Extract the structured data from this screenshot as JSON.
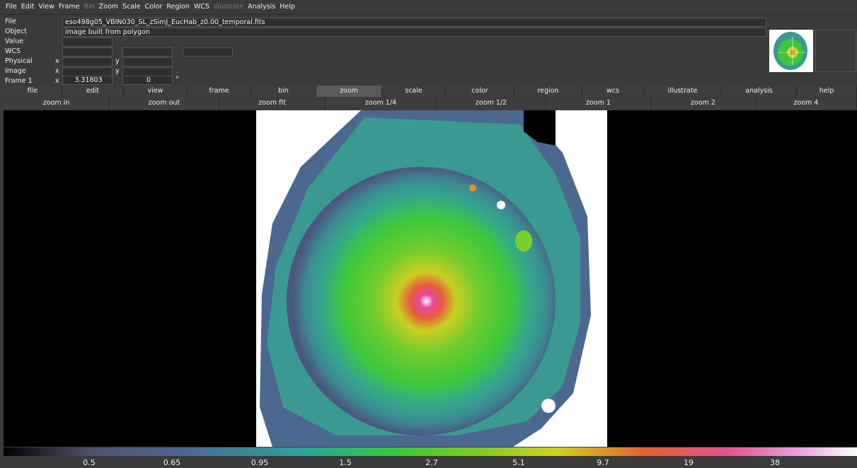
{
  "menu": [
    "File",
    "Edit",
    "View",
    "Frame",
    "Bin",
    "Zoom",
    "Scale",
    "Color",
    "Region",
    "WCS",
    "Illustrate",
    "Analysis",
    "Help"
  ],
  "menu_disabled": [
    "Bin",
    "Illustrate"
  ],
  "info": {
    "file_label": "File",
    "file_value": "eso498g05_VBIN030_SL_zSimJ_EucHab_z0.00_temporal.fits",
    "object_label": "Object",
    "object_value": "image built from polygon",
    "value_label": "Value",
    "wcs_label": "WCS",
    "physical_label": "Physical",
    "image_label": "Image",
    "frame_label": "Frame 1",
    "x": "x",
    "y": "y",
    "frame_x": "3.31803",
    "frame_angle": "0",
    "degree": "°"
  },
  "buttons": [
    "file",
    "edit",
    "view",
    "frame",
    "bin",
    "zoom",
    "scale",
    "color",
    "region",
    "wcs",
    "illustrate",
    "analysis",
    "help"
  ],
  "active_button": "zoom",
  "zoom_buttons": [
    "zoom in",
    "zoom out",
    "zoom fit",
    "zoom 1/4",
    "zoom 1/2",
    "zoom 1",
    "zoom 2",
    "zoom 4"
  ],
  "colorbar_labels": [
    "0.5",
    "0.65",
    "0.95",
    "1.5",
    "2.7",
    "5.1",
    "9.7",
    "19",
    "38"
  ]
}
